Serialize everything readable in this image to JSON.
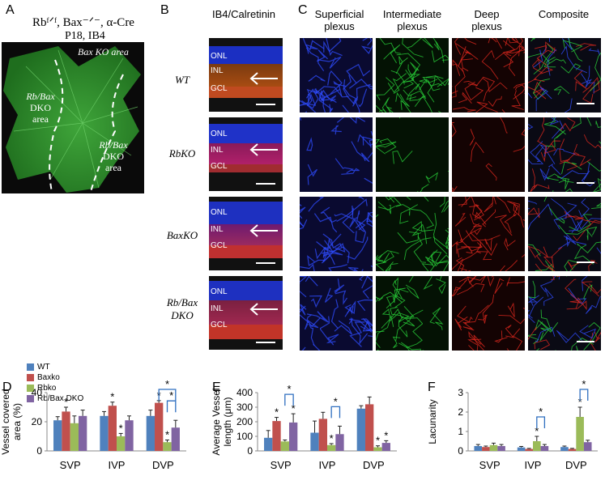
{
  "panelA": {
    "letter": "A",
    "genotype": "Rbᶠᐟᶠ, Bax⁻ᐟ⁻, α-Cre",
    "stain": "P18, IB4",
    "region_bax": "Bax KO area",
    "region_dko_left": [
      "Rb/Bax",
      "DKO",
      "area"
    ],
    "region_dko_right": [
      "Rb/Bax",
      "DKO",
      "area"
    ]
  },
  "panelB": {
    "letter": "B",
    "title": "IB4/Calretinin",
    "rows": [
      "WT",
      "RbKO",
      "BaxKO",
      "Rb/Bax DKO"
    ],
    "layers": [
      "ONL",
      "INL",
      "GCL"
    ]
  },
  "panelC": {
    "letter": "C",
    "columns": [
      "Superficial\nplexus",
      "Intermediate\nplexus",
      "Deep\nplexus",
      "Composite"
    ]
  },
  "legend": [
    {
      "label": "WT",
      "color": "#4f81bd"
    },
    {
      "label": "Baxko",
      "color": "#c0504d"
    },
    {
      "label": "Rbko",
      "color": "#9bbb59"
    },
    {
      "label": "Rb/Bax DKO",
      "color": "#8064a2"
    }
  ],
  "chart_data": [
    {
      "panel": "D",
      "type": "bar",
      "ylabel": "Vessel covered area (%)",
      "ylim": [
        0,
        40
      ],
      "yticks": [
        0,
        20,
        40
      ],
      "categories": [
        "SVP",
        "IVP",
        "DVP"
      ],
      "series": [
        {
          "name": "WT",
          "values": [
            21,
            24,
            24
          ]
        },
        {
          "name": "Baxko",
          "values": [
            27,
            31,
            33
          ]
        },
        {
          "name": "Rbko",
          "values": [
            19,
            10,
            6
          ]
        },
        {
          "name": "Rb/Bax DKO",
          "values": [
            24,
            21,
            16
          ]
        }
      ],
      "errors": [
        [
          2.5,
          3,
          4
        ],
        [
          3,
          2.5,
          1.5
        ],
        [
          5,
          2,
          1.5
        ],
        [
          4,
          3,
          5
        ]
      ],
      "stars": [
        [
          1,
          0
        ],
        [
          1,
          1
        ],
        [
          2,
          1
        ],
        [
          1,
          2
        ],
        [
          2,
          2
        ]
      ],
      "brackets": [
        [
          1,
          2,
          3
        ],
        [
          2,
          2,
          3
        ]
      ]
    },
    {
      "panel": "E",
      "type": "bar",
      "ylabel": "Average Vessel length (μm)",
      "ylim": [
        0,
        400
      ],
      "yticks": [
        0,
        100,
        200,
        300,
        400
      ],
      "categories": [
        "SVP",
        "IVP",
        "DVP"
      ],
      "series": [
        {
          "name": "WT",
          "values": [
            90,
            125,
            290
          ]
        },
        {
          "name": "Baxko",
          "values": [
            205,
            220,
            320
          ]
        },
        {
          "name": "Rbko",
          "values": [
            65,
            40,
            25
          ]
        },
        {
          "name": "Rb/Bax DKO",
          "values": [
            195,
            115,
            55
          ]
        }
      ],
      "errors": [
        [
          50,
          80,
          20
        ],
        [
          25,
          45,
          50
        ],
        [
          10,
          10,
          10
        ],
        [
          60,
          55,
          15
        ]
      ],
      "stars": [
        [
          1,
          0
        ],
        [
          3,
          0
        ],
        [
          2,
          1
        ],
        [
          2,
          2
        ],
        [
          3,
          2
        ]
      ],
      "brackets": [
        [
          2,
          0,
          3
        ],
        [
          2,
          1,
          3
        ]
      ]
    },
    {
      "panel": "F",
      "type": "bar",
      "ylabel": "Lacunarity",
      "ylim": [
        0,
        3
      ],
      "yticks": [
        0,
        1,
        2,
        3
      ],
      "categories": [
        "SVP",
        "IVP",
        "DVP"
      ],
      "series": [
        {
          "name": "WT",
          "values": [
            0.25,
            0.18,
            0.2
          ]
        },
        {
          "name": "Baxko",
          "values": [
            0.2,
            0.1,
            0.1
          ]
        },
        {
          "name": "Rbko",
          "values": [
            0.3,
            0.5,
            1.75
          ]
        },
        {
          "name": "Rb/Bax DKO",
          "values": [
            0.25,
            0.25,
            0.45
          ]
        }
      ],
      "errors": [
        [
          0.08,
          0.05,
          0.05
        ],
        [
          0.05,
          0.03,
          0.03
        ],
        [
          0.1,
          0.25,
          0.5
        ],
        [
          0.08,
          0.08,
          0.1
        ]
      ],
      "stars": [
        [
          2,
          1
        ],
        [
          2,
          2
        ]
      ],
      "brackets": [
        [
          2,
          1,
          3
        ],
        [
          2,
          2,
          3
        ]
      ]
    }
  ],
  "chart_letters": [
    "D",
    "E",
    "F"
  ]
}
